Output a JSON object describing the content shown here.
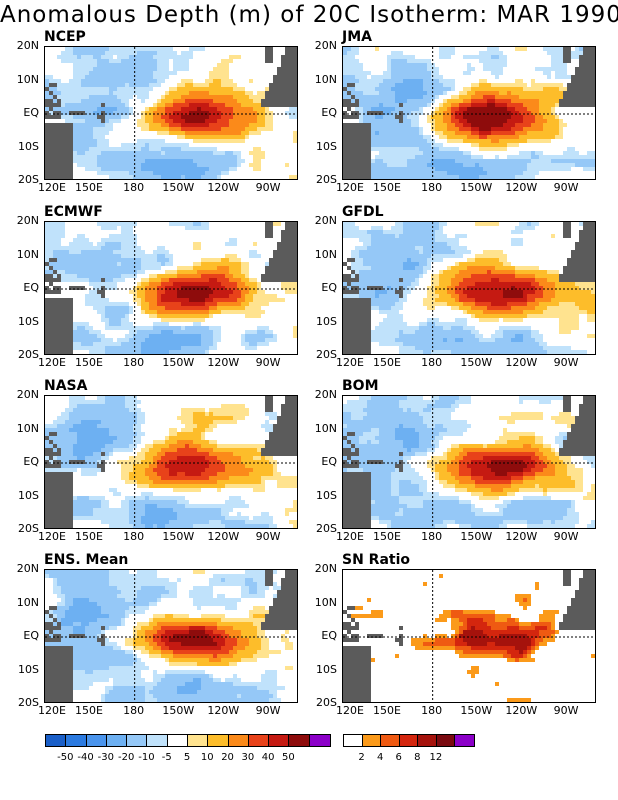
{
  "title": "Anomalous Depth (m) of 20C Isotherm: MAR 1990",
  "lat_labels": [
    "20N",
    "10N",
    "EQ",
    "10S",
    "20S"
  ],
  "lon_labels": [
    "120E",
    "150E",
    "180",
    "150W",
    "120W",
    "90W"
  ],
  "panels": [
    {
      "name": "NCEP",
      "kind": "anom"
    },
    {
      "name": "JMA",
      "kind": "anom"
    },
    {
      "name": "ECMWF",
      "kind": "anom"
    },
    {
      "name": "GFDL",
      "kind": "anom"
    },
    {
      "name": "NASA",
      "kind": "anom"
    },
    {
      "name": "BOM",
      "kind": "anom"
    },
    {
      "name": "ENS. Mean",
      "kind": "anom"
    },
    {
      "name": "SN Ratio",
      "kind": "ratio"
    }
  ],
  "legend_anomaly": {
    "colors": [
      "#1a5fc8",
      "#2b7ae0",
      "#4a94ec",
      "#6db0f2",
      "#95c8f7",
      "#c0e2fb",
      "#ffffff",
      "#ffe38f",
      "#fdbd2a",
      "#fb8a1a",
      "#e8421a",
      "#c51a12",
      "#8e0c0c",
      "#8b00c8"
    ],
    "labels": [
      "-50",
      "-40",
      "-30",
      "-20",
      "-10",
      "-5",
      "5",
      "10",
      "20",
      "30",
      "40",
      "50"
    ]
  },
  "legend_ratio": {
    "colors": [
      "#ffffff",
      "#fb9a1a",
      "#ef5a12",
      "#d4260e",
      "#a5120c",
      "#7a0a10",
      "#8b00c8"
    ],
    "labels": [
      "2",
      "4",
      "6",
      "8",
      "12"
    ]
  },
  "colors": {
    "land": "#5b5b5b",
    "frame": "#000000"
  }
}
